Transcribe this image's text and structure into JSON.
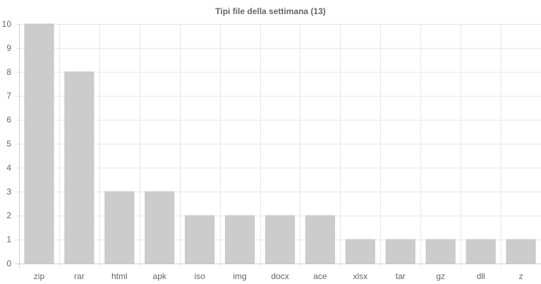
{
  "chart_data": {
    "type": "bar",
    "title": "Tipi file della settimana (13)",
    "categories": [
      "zip",
      "rar",
      "html",
      "apk",
      "iso",
      "img",
      "docx",
      "ace",
      "xlsx",
      "tar",
      "gz",
      "dll",
      "z"
    ],
    "values": [
      10,
      8,
      3,
      3,
      2,
      2,
      2,
      2,
      1,
      1,
      1,
      1,
      1
    ],
    "ylim": [
      0,
      10
    ],
    "yticks": [
      0,
      1,
      2,
      3,
      4,
      5,
      6,
      7,
      8,
      9,
      10
    ],
    "grid": true,
    "legend": "none",
    "bar_color": "#cccccc",
    "grid_color": "#e6e6e6"
  }
}
